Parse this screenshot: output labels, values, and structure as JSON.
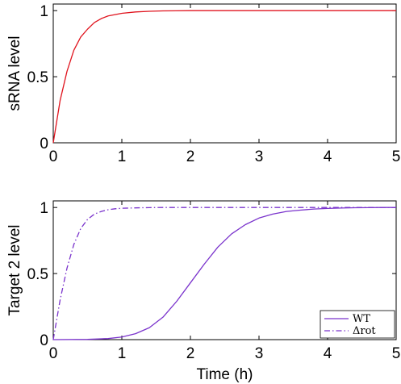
{
  "chart_data": [
    {
      "type": "line",
      "title": "",
      "xlabel": "",
      "ylabel": "sRNA level",
      "xlim": [
        0,
        5
      ],
      "ylim": [
        0,
        1.05
      ],
      "xticks": [
        "0",
        "1",
        "2",
        "3",
        "4",
        "5"
      ],
      "yticks": [
        "0",
        "0.5",
        "1"
      ],
      "grid": false,
      "series": [
        {
          "color": "#e0141e",
          "dash": "solid",
          "x": [
            0,
            0.1,
            0.2,
            0.3,
            0.4,
            0.5,
            0.6,
            0.7,
            0.8,
            0.9,
            1.0,
            1.2,
            1.4,
            1.6,
            1.8,
            2.0,
            2.5,
            3.0,
            3.5,
            4.0,
            4.5,
            5.0
          ],
          "y": [
            0,
            0.32,
            0.54,
            0.7,
            0.8,
            0.86,
            0.91,
            0.94,
            0.96,
            0.97,
            0.98,
            0.99,
            0.995,
            0.998,
            0.999,
            1,
            1,
            1,
            1,
            1,
            1,
            1
          ]
        }
      ]
    },
    {
      "type": "line",
      "title": "",
      "xlabel": "Time (h)",
      "ylabel": "Target 2 level",
      "xlim": [
        0,
        5
      ],
      "ylim": [
        0,
        1.05
      ],
      "xticks": [
        "0",
        "1",
        "2",
        "3",
        "4",
        "5"
      ],
      "yticks": [
        "0",
        "0.5",
        "1"
      ],
      "grid": false,
      "legend_position": "bottom-right",
      "series": [
        {
          "name": "WT",
          "color": "#7a33cc",
          "dash": "solid",
          "x": [
            0,
            0.5,
            0.8,
            1.0,
            1.2,
            1.4,
            1.6,
            1.8,
            2.0,
            2.2,
            2.4,
            2.6,
            2.8,
            3.0,
            3.2,
            3.4,
            3.6,
            3.8,
            4.0,
            4.2,
            4.4,
            4.6,
            4.8,
            5.0
          ],
          "y": [
            0,
            0.002,
            0.008,
            0.02,
            0.045,
            0.09,
            0.17,
            0.29,
            0.43,
            0.57,
            0.7,
            0.8,
            0.87,
            0.92,
            0.95,
            0.97,
            0.98,
            0.988,
            0.993,
            0.996,
            0.998,
            0.999,
            1,
            1
          ]
        },
        {
          "name": "Δrot",
          "color": "#7a33cc",
          "dash": "dashdot",
          "x": [
            0,
            0.1,
            0.2,
            0.3,
            0.4,
            0.5,
            0.6,
            0.7,
            0.8,
            0.9,
            1.0,
            1.2,
            1.4,
            1.6,
            2.0,
            2.5,
            3.0,
            4.0,
            5.0
          ],
          "y": [
            0,
            0.3,
            0.54,
            0.72,
            0.84,
            0.91,
            0.95,
            0.97,
            0.983,
            0.99,
            0.994,
            0.997,
            0.999,
            1,
            1,
            1,
            1,
            1,
            1
          ]
        }
      ]
    }
  ]
}
